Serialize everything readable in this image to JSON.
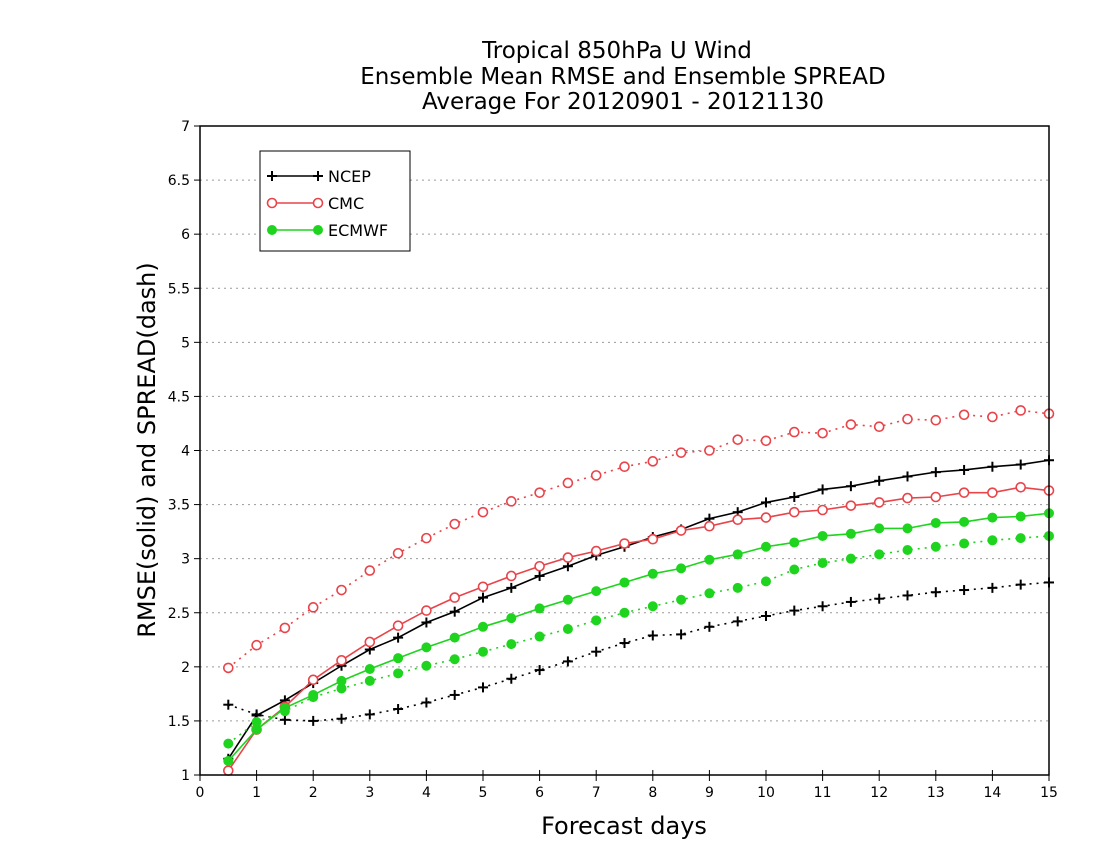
{
  "chart_data": {
    "type": "line",
    "title": [
      "Tropical 850hPa U Wind",
      "Ensemble Mean RMSE and Ensemble SPREAD",
      "Average For 20120901 - 20121130"
    ],
    "xlabel": "Forecast days",
    "ylabel": "RMSE(solid) and SPREAD(dash)",
    "xlim": [
      0,
      15
    ],
    "ylim": [
      1,
      7
    ],
    "xticks": [
      0,
      1,
      2,
      3,
      4,
      5,
      6,
      7,
      8,
      9,
      10,
      11,
      12,
      13,
      14,
      15
    ],
    "yticks": [
      1,
      1.5,
      2,
      2.5,
      3,
      3.5,
      4,
      4.5,
      5,
      5.5,
      6,
      6.5,
      7
    ],
    "grid": "dotted horizontal",
    "legend_position": "top-left",
    "x": [
      0.5,
      1,
      1.5,
      2,
      2.5,
      3,
      3.5,
      4,
      4.5,
      5,
      5.5,
      6,
      6.5,
      7,
      7.5,
      8,
      8.5,
      9,
      9.5,
      10,
      10.5,
      11,
      11.5,
      12,
      12.5,
      13,
      13.5,
      14,
      14.5,
      15
    ],
    "series": [
      {
        "name": "NCEP",
        "color": "#000000",
        "marker": "plus",
        "rmse": [
          1.15,
          1.55,
          1.69,
          1.85,
          2.01,
          2.16,
          2.27,
          2.41,
          2.51,
          2.64,
          2.73,
          2.84,
          2.93,
          3.03,
          3.11,
          3.2,
          3.27,
          3.37,
          3.43,
          3.52,
          3.57,
          3.64,
          3.67,
          3.72,
          3.76,
          3.8,
          3.82,
          3.85,
          3.87,
          3.91
        ],
        "spread": [
          1.65,
          1.56,
          1.51,
          1.5,
          1.52,
          1.56,
          1.61,
          1.67,
          1.74,
          1.81,
          1.89,
          1.97,
          2.05,
          2.14,
          2.22,
          2.29,
          2.3,
          2.37,
          2.42,
          2.47,
          2.52,
          2.56,
          2.6,
          2.63,
          2.66,
          2.69,
          2.71,
          2.73,
          2.76,
          2.78
        ]
      },
      {
        "name": "CMC",
        "color": "#e8444a",
        "marker": "open-circle",
        "rmse": [
          1.04,
          1.42,
          1.63,
          1.88,
          2.06,
          2.23,
          2.38,
          2.52,
          2.64,
          2.74,
          2.84,
          2.93,
          3.01,
          3.07,
          3.14,
          3.18,
          3.26,
          3.3,
          3.36,
          3.38,
          3.43,
          3.45,
          3.49,
          3.52,
          3.56,
          3.57,
          3.61,
          3.61,
          3.66,
          3.63
        ],
        "spread": [
          1.99,
          2.2,
          2.36,
          2.55,
          2.71,
          2.89,
          3.05,
          3.19,
          3.32,
          3.43,
          3.53,
          3.61,
          3.7,
          3.77,
          3.85,
          3.9,
          3.98,
          4.0,
          4.1,
          4.09,
          4.17,
          4.16,
          4.24,
          4.22,
          4.29,
          4.28,
          4.33,
          4.31,
          4.37,
          4.34
        ]
      },
      {
        "name": "ECMWF",
        "color": "#1ed41e",
        "marker": "filled-circle",
        "rmse": [
          1.13,
          1.42,
          1.62,
          1.74,
          1.87,
          1.98,
          2.08,
          2.18,
          2.27,
          2.37,
          2.45,
          2.54,
          2.62,
          2.7,
          2.78,
          2.86,
          2.91,
          2.99,
          3.04,
          3.11,
          3.15,
          3.21,
          3.23,
          3.28,
          3.28,
          3.33,
          3.34,
          3.38,
          3.39,
          3.42
        ],
        "spread": [
          1.29,
          1.49,
          1.59,
          1.72,
          1.8,
          1.87,
          1.94,
          2.01,
          2.07,
          2.14,
          2.21,
          2.28,
          2.35,
          2.43,
          2.5,
          2.56,
          2.62,
          2.68,
          2.73,
          2.79,
          2.9,
          2.96,
          3.0,
          3.04,
          3.08,
          3.11,
          3.14,
          3.17,
          3.19,
          3.21
        ]
      }
    ]
  }
}
